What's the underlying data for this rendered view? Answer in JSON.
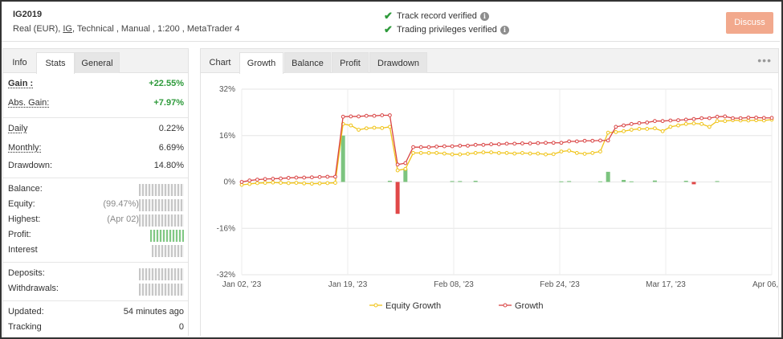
{
  "account": {
    "name": "IG2019",
    "type": "Real (EUR),",
    "broker": "IG",
    "details": ", Technical , Manual , 1:200 , MetaTrader 4"
  },
  "verification": {
    "track_record": "Track record verified",
    "trading_privileges": "Trading privileges verified"
  },
  "discuss_label": "Discuss",
  "left_tabs": [
    "Info",
    "Stats",
    "General"
  ],
  "stats": {
    "gain_label": "Gain :",
    "gain_value": "+22.55%",
    "abs_gain_label": "Abs. Gain:",
    "abs_gain_value": "+7.97%",
    "daily_label": "Daily",
    "daily_value": "0.22%",
    "monthly_label": "Monthly:",
    "monthly_value": "6.69%",
    "drawdown_label": "Drawdown:",
    "drawdown_value": "14.80%",
    "balance_label": "Balance:",
    "equity_label": "Equity:",
    "equity_prefix": "(99.47%)",
    "highest_label": "Highest:",
    "highest_prefix": "(Apr 02)",
    "profit_label": "Profit:",
    "interest_label": "Interest",
    "deposits_label": "Deposits:",
    "withdrawals_label": "Withdrawals:",
    "updated_label": "Updated:",
    "updated_value": "54 minutes ago",
    "tracking_label": "Tracking",
    "tracking_value": "0"
  },
  "chart_tabs": [
    "Chart",
    "Growth",
    "Balance",
    "Profit",
    "Drawdown"
  ],
  "more_icon": "ellipsis-icon",
  "colors": {
    "growth": "#d94545",
    "equity_growth": "#f0c419",
    "gain_positive": "#2e9a3b",
    "discuss_button": "#f2a98d",
    "bar_positive": "#7cc47f",
    "bar_negative": "#e04848"
  },
  "chart_data": {
    "type": "line",
    "ylim": [
      -32,
      32
    ],
    "yticks": [
      "32%",
      "16%",
      "0%",
      "-16%",
      "-32%"
    ],
    "xticks": [
      "Jan 02, '23",
      "Jan 19, '23",
      "Feb 08, '23",
      "Feb 24, '23",
      "Mar 17, '23",
      "Apr 06, '23"
    ],
    "grid": true,
    "legend_position": "bottom",
    "x": [
      "Jan 02",
      "Jan 03",
      "Jan 04",
      "Jan 05",
      "Jan 06",
      "Jan 09",
      "Jan 10",
      "Jan 11",
      "Jan 12",
      "Jan 13",
      "Jan 16",
      "Jan 17",
      "Jan 18",
      "Jan 19",
      "Jan 20",
      "Jan 23",
      "Jan 24",
      "Jan 25",
      "Jan 26",
      "Jan 27",
      "Jan 30",
      "Jan 31",
      "Feb 01",
      "Feb 02",
      "Feb 03",
      "Feb 06",
      "Feb 07",
      "Feb 08",
      "Feb 09",
      "Feb 10",
      "Feb 13",
      "Feb 14",
      "Feb 15",
      "Feb 16",
      "Feb 17",
      "Feb 20",
      "Feb 21",
      "Feb 22",
      "Feb 23",
      "Feb 24",
      "Feb 27",
      "Feb 28",
      "Mar 01",
      "Mar 02",
      "Mar 03",
      "Mar 06",
      "Mar 07",
      "Mar 08",
      "Mar 09",
      "Mar 10",
      "Mar 13",
      "Mar 14",
      "Mar 15",
      "Mar 16",
      "Mar 17",
      "Mar 20",
      "Mar 21",
      "Mar 22",
      "Mar 23",
      "Mar 24",
      "Mar 27",
      "Mar 28",
      "Mar 29",
      "Mar 30",
      "Mar 31",
      "Apr 03",
      "Apr 04",
      "Apr 05",
      "Apr 06"
    ],
    "series": [
      {
        "name": "Equity Growth",
        "values": [
          -1,
          -0.7,
          -0.4,
          -0.3,
          -0.2,
          -0.3,
          -0.4,
          -0.3,
          -0.5,
          -0.6,
          -0.5,
          -0.4,
          -0.3,
          20,
          19.5,
          18,
          18.5,
          18.7,
          18.6,
          19,
          4,
          4.5,
          10,
          10,
          10,
          10,
          9.8,
          9.5,
          9.5,
          9.7,
          10,
          10.2,
          10.2,
          10,
          10,
          9.8,
          10,
          9.8,
          9.8,
          9.5,
          9.6,
          10.5,
          10.8,
          10,
          9.7,
          10,
          10.5,
          17,
          17.2,
          17.5,
          18,
          18.3,
          18.3,
          18.5,
          17.5,
          19,
          19.5,
          20,
          20.2,
          20,
          19,
          21,
          21,
          21.3,
          21.2,
          21.2,
          21.3,
          21.2,
          21.5
        ]
      },
      {
        "name": "Growth",
        "values": [
          0,
          0.5,
          0.8,
          1,
          1.1,
          1.2,
          1.4,
          1.5,
          1.5,
          1.6,
          1.7,
          1.8,
          1.8,
          22.5,
          22.6,
          22.6,
          22.8,
          22.8,
          23,
          23,
          6,
          6.5,
          12,
          12,
          12,
          12.2,
          12.3,
          12.3,
          12.5,
          12.5,
          12.8,
          12.8,
          13,
          13,
          13.2,
          13.2,
          13.3,
          13.3,
          13.4,
          13.5,
          13.5,
          13.5,
          14,
          14,
          14.2,
          14.2,
          14.3,
          14.3,
          19,
          19.5,
          20,
          20.3,
          20.5,
          21,
          21,
          21.2,
          21.3,
          21.5,
          21.7,
          22,
          22,
          22.5,
          22.6,
          22,
          22,
          22.2,
          22.2,
          22.1,
          22.1
        ]
      }
    ],
    "bars": [
      0,
      0,
      0,
      0,
      0,
      0,
      0,
      0,
      0,
      0,
      0,
      0,
      0,
      16,
      0,
      0,
      0,
      0,
      0,
      0.4,
      -11,
      4.5,
      0,
      0,
      0,
      0,
      0,
      0.3,
      0.3,
      0,
      0.4,
      0,
      0,
      0,
      0,
      0,
      0,
      0,
      0,
      0,
      0,
      0.2,
      0.3,
      0,
      0,
      0,
      0.2,
      3.5,
      0,
      0.7,
      0.2,
      0,
      0,
      0.5,
      0,
      0,
      0,
      0.4,
      -0.8,
      0,
      0,
      0.3,
      0,
      0,
      0,
      0,
      0,
      0,
      0
    ]
  }
}
